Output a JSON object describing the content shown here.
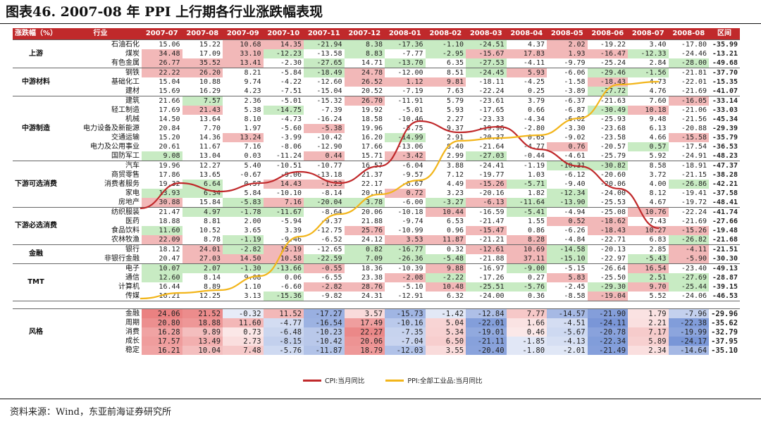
{
  "title": "图表46. 2007-08 年 PPI 上行期各行业涨跌幅表现",
  "source": "资料来源：Wind，东亚前海证券研究所",
  "headers": [
    "涨跌幅（%）",
    "行业",
    "2007-07",
    "2007-08",
    "2007-09",
    "2007-10",
    "2007-11",
    "2007-12",
    "2008-01",
    "2008-02",
    "2008-03",
    "2008-04",
    "2008-05",
    "2008-06",
    "2008-07",
    "2008-08",
    "区间"
  ],
  "groups": [
    {
      "name": "上游",
      "rows": [
        {
          "ind": "石油石化",
          "v": [
            "15.06",
            "15.22",
            "10.68",
            "14.35",
            "-21.94",
            "8.38",
            "-17.36",
            "-1.10",
            "-24.51",
            "4.37",
            "2.02",
            "-19.22",
            "3.40",
            "-17.80",
            "-35.99"
          ]
        },
        {
          "ind": "煤炭",
          "v": [
            "34.48",
            "17.09",
            "33.10",
            "-12.23",
            "-13.58",
            "8.83",
            "-7.77",
            "-2.95",
            "-15.67",
            "17.83",
            "1.93",
            "-16.47",
            "-12.33",
            "-24.46",
            "-13.21"
          ]
        },
        {
          "ind": "有色金属",
          "v": [
            "26.77",
            "35.52",
            "13.41",
            "-2.30",
            "-27.65",
            "14.71",
            "-13.70",
            "6.35",
            "-27.53",
            "-4.11",
            "-9.79",
            "-25.24",
            "2.84",
            "-28.00",
            "-49.68"
          ]
        }
      ]
    },
    {
      "name": "中游材料",
      "rows": [
        {
          "ind": "钢铁",
          "v": [
            "22.22",
            "26.20",
            "8.21",
            "-5.84",
            "-18.49",
            "24.78",
            "-12.00",
            "8.51",
            "-24.45",
            "5.93",
            "-6.06",
            "-29.46",
            "-1.56",
            "-21.81",
            "-37.70"
          ]
        },
        {
          "ind": "基础化工",
          "v": [
            "15.04",
            "10.88",
            "9.74",
            "-4.22",
            "-12.60",
            "26.52",
            "1.12",
            "9.81",
            "-18.11",
            "-4.25",
            "-1.58",
            "-18.43",
            "4.73",
            "-22.01",
            "-15.35"
          ]
        },
        {
          "ind": "建材",
          "v": [
            "15.69",
            "16.29",
            "4.23",
            "-7.51",
            "-15.04",
            "20.52",
            "-7.19",
            "7.63",
            "-22.24",
            "0.25",
            "-3.89",
            "-27.72",
            "4.76",
            "-21.69",
            "-41.07"
          ]
        }
      ]
    },
    {
      "name": "中游制造",
      "rows": [
        {
          "ind": "建筑",
          "v": [
            "21.66",
            "7.57",
            "2.36",
            "-5.01",
            "-15.32",
            "26.70",
            "-11.91",
            "5.79",
            "-23.61",
            "3.79",
            "-6.37",
            "-21.63",
            "7.60",
            "-16.05",
            "-33.14"
          ]
        },
        {
          "ind": "轻工制造",
          "v": [
            "17.69",
            "21.43",
            "5.38",
            "-14.75",
            "-7.39",
            "19.92",
            "-5.01",
            "5.93",
            "-17.65",
            "0.66",
            "-6.87",
            "-30.49",
            "10.18",
            "-21.06",
            "-33.03"
          ]
        },
        {
          "ind": "机械",
          "v": [
            "14.50",
            "13.64",
            "8.10",
            "-4.73",
            "-16.24",
            "18.58",
            "-10.46",
            "2.27",
            "-23.33",
            "-4.34",
            "-6.02",
            "-25.93",
            "9.48",
            "-21.56",
            "-45.34"
          ]
        },
        {
          "ind": "电力设备及新能源",
          "v": [
            "20.84",
            "7.70",
            "1.97",
            "-5.60",
            "-5.38",
            "19.96",
            "-5.75",
            "9.37",
            "-19.96",
            "-2.80",
            "-3.30",
            "-23.68",
            "6.13",
            "-20.88",
            "-29.39"
          ]
        },
        {
          "ind": "交通运输",
          "v": [
            "15.20",
            "14.36",
            "13.24",
            "-3.99",
            "-10.42",
            "16.20",
            "-14.99",
            "2.91",
            "-20.37",
            "0.65",
            "-9.02",
            "-23.58",
            "4.66",
            "-15.58",
            "-35.79"
          ]
        },
        {
          "ind": "电力及公用事业",
          "v": [
            "20.61",
            "11.67",
            "7.16",
            "-8.06",
            "-12.90",
            "17.66",
            "-13.06",
            "8.40",
            "-21.64",
            "-4.77",
            "0.76",
            "-20.57",
            "0.57",
            "-17.54",
            "-36.53"
          ]
        },
        {
          "ind": "国防军工",
          "v": [
            "9.08",
            "13.04",
            "0.03",
            "-11.24",
            "0.44",
            "15.71",
            "-3.42",
            "2.99",
            "-27.03",
            "-0.44",
            "-4.61",
            "-25.79",
            "5.92",
            "-24.91",
            "-48.23"
          ]
        }
      ]
    },
    {
      "name": "下游可选消费",
      "rows": [
        {
          "ind": "汽车",
          "v": [
            "19.96",
            "12.27",
            "5.40",
            "-10.51",
            "-10.77",
            "16.57",
            "-6.04",
            "3.88",
            "-24.41",
            "-1.19",
            "-10.31",
            "-30.82",
            "8.58",
            "-18.91",
            "-47.37"
          ]
        },
        {
          "ind": "商贸零售",
          "v": [
            "17.86",
            "13.65",
            "-0.67",
            "-9.06",
            "-13.18",
            "21.37",
            "-9.57",
            "7.12",
            "-19.77",
            "1.03",
            "-6.12",
            "-20.60",
            "3.72",
            "-21.15",
            "-38.28"
          ]
        },
        {
          "ind": "消费者服务",
          "v": [
            "19.32",
            "6.64",
            "0.57",
            "14.43",
            "-1.23",
            "22.17",
            "-6.67",
            "4.49",
            "-15.26",
            "-5.71",
            "-9.40",
            "-20.06",
            "4.00",
            "-26.86",
            "-42.21"
          ]
        },
        {
          "ind": "家电",
          "v": [
            "13.93",
            "6.34",
            "5.84",
            "-10.10",
            "-8.14",
            "20.16",
            "0.72",
            "3.23",
            "-20.16",
            "1.82",
            "-12.34",
            "-24.00",
            "8.12",
            "-19.41",
            "-37.58"
          ]
        },
        {
          "ind": "房地产",
          "v": [
            "30.88",
            "15.84",
            "-5.83",
            "7.16",
            "-20.04",
            "3.78",
            "-6.00",
            "-3.27",
            "-6.13",
            "-11.64",
            "-13.90",
            "-25.53",
            "4.67",
            "-19.72",
            "-48.41"
          ]
        }
      ]
    },
    {
      "name": "下游必选消费",
      "rows": [
        {
          "ind": "纺织服装",
          "v": [
            "21.47",
            "4.97",
            "-1.78",
            "-11.67",
            "-8.64",
            "20.06",
            "-10.18",
            "10.44",
            "-16.59",
            "-5.41",
            "-4.94",
            "-25.08",
            "10.76",
            "-22.24",
            "-41.74"
          ]
        },
        {
          "ind": "医药",
          "v": [
            "18.88",
            "8.81",
            "2.00",
            "-5.94",
            "-9.37",
            "21.88",
            "-9.74",
            "6.53",
            "-21.47",
            "1.55",
            "0.52",
            "-18.62",
            "7.43",
            "-21.69",
            "-27.66"
          ]
        },
        {
          "ind": "食品饮料",
          "v": [
            "11.60",
            "10.52",
            "3.65",
            "3.39",
            "-12.75",
            "25.76",
            "-10.99",
            "0.96",
            "-15.47",
            "0.86",
            "-6.26",
            "-18.43",
            "10.27",
            "-15.26",
            "-19.48"
          ]
        },
        {
          "ind": "农林牧渔",
          "v": [
            "22.09",
            "8.78",
            "-1.19",
            "-9.46",
            "-6.52",
            "24.12",
            "3.53",
            "11.87",
            "-21.21",
            "8.28",
            "-4.84",
            "-22.71",
            "6.83",
            "-26.82",
            "-21.68"
          ]
        }
      ]
    },
    {
      "name": "金融",
      "rows": [
        {
          "ind": "银行",
          "v": [
            "18.12",
            "24.01",
            "-2.82",
            "15.19",
            "-12.65",
            "0.82",
            "-16.77",
            "0.32",
            "-12.61",
            "10.69",
            "-14.58",
            "-20.13",
            "2.85",
            "-4.11",
            "-21.51"
          ]
        },
        {
          "ind": "非银行金融",
          "v": [
            "20.47",
            "27.03",
            "14.50",
            "10.58",
            "-22.59",
            "7.09",
            "-26.36",
            "-5.48",
            "-21.88",
            "37.11",
            "-15.10",
            "-22.97",
            "-5.43",
            "-5.90",
            "-30.30"
          ]
        }
      ]
    },
    {
      "name": "TMT",
      "rows": [
        {
          "ind": "电子",
          "v": [
            "10.07",
            "2.07",
            "-1.30",
            "-13.66",
            "-0.55",
            "18.36",
            "-10.39",
            "9.88",
            "-16.97",
            "-9.00",
            "-5.15",
            "-26.64",
            "16.54",
            "-23.40",
            "-49.13"
          ]
        },
        {
          "ind": "通信",
          "v": [
            "12.60",
            "8.14",
            "9.08",
            "0.06",
            "-6.55",
            "23.38",
            "-2.08",
            "-2.22",
            "-17.26",
            "0.27",
            "5.83",
            "-25.50",
            "2.51",
            "-27.69",
            "-28.87"
          ]
        },
        {
          "ind": "计算机",
          "v": [
            "16.44",
            "8.89",
            "1.10",
            "-6.60",
            "-2.82",
            "28.76",
            "-5.10",
            "10.48",
            "-25.51",
            "-5.76",
            "-2.45",
            "-29.30",
            "9.70",
            "-25.44",
            "-39.15"
          ]
        },
        {
          "ind": "传媒",
          "v": [
            "16.21",
            "12.25",
            "3.13",
            "-15.36",
            "-9.82",
            "24.31",
            "-12.91",
            "6.32",
            "-24.00",
            "0.36",
            "-8.58",
            "-19.04",
            "5.52",
            "-24.06",
            "-46.53"
          ]
        }
      ]
    }
  ],
  "style_group": {
    "name": "风格",
    "rows": [
      {
        "ind": "金融",
        "v": [
          "24.06",
          "21.52",
          "-0.32",
          "11.52",
          "-17.27",
          "3.57",
          "-15.73",
          "-1.42",
          "-12.84",
          "7.77",
          "-14.57",
          "-21.90",
          "1.79",
          "-7.96",
          "-29.96"
        ]
      },
      {
        "ind": "周期",
        "v": [
          "20.80",
          "18.88",
          "11.60",
          "-4.77",
          "-16.54",
          "17.49",
          "-10.16",
          "5.04",
          "-22.01",
          "1.66",
          "-4.51",
          "-24.11",
          "2.21",
          "-22.38",
          "-35.62"
        ]
      },
      {
        "ind": "消费",
        "v": [
          "16.28",
          "9.89",
          "0.73",
          "-6.48",
          "-10.23",
          "22.27",
          "-7.35",
          "5.34",
          "-19.01",
          "0.46",
          "-5.67",
          "-20.78",
          "7.17",
          "-19.99",
          "-32.79"
        ]
      },
      {
        "ind": "成长",
        "v": [
          "17.57",
          "13.49",
          "2.73",
          "-8.15",
          "-10.42",
          "20.06",
          "-7.04",
          "6.50",
          "-21.11",
          "-1.85",
          "-4.13",
          "-22.34",
          "5.89",
          "-24.17",
          "-37.95"
        ]
      },
      {
        "ind": "稳定",
        "v": [
          "16.21",
          "10.04",
          "7.48",
          "-5.76",
          "-11.87",
          "18.79",
          "-12.03",
          "3.55",
          "-20.40",
          "-1.80",
          "-2.01",
          "-21.49",
          "2.34",
          "-14.64",
          "-35.10"
        ]
      }
    ]
  },
  "chart_data": {
    "type": "line",
    "x": [
      "2007-07",
      "2007-08",
      "2007-09",
      "2007-10",
      "2007-11",
      "2007-12",
      "2008-01",
      "2008-02",
      "2008-03",
      "2008-04",
      "2008-05",
      "2008-06",
      "2008-07",
      "2008-08"
    ],
    "series": [
      {
        "name": "CPI:当月同比",
        "color": "#c0292b",
        "values": [
          5.6,
          6.5,
          6.2,
          6.5,
          6.9,
          6.5,
          7.1,
          8.7,
          8.3,
          8.5,
          7.7,
          7.1,
          6.3,
          4.9
        ]
      },
      {
        "name": "PPI:全部工业品:当月同比",
        "color": "#f2b51a",
        "values": [
          2.4,
          2.6,
          2.7,
          3.2,
          4.6,
          5.4,
          6.1,
          6.6,
          8.0,
          8.1,
          8.2,
          8.8,
          10.0,
          10.1
        ]
      }
    ],
    "ylim": [
      2,
      10.5
    ]
  },
  "colors": {
    "header": "#c0292b",
    "pos": "#f2b8b8",
    "neg": "#c8ebc3"
  }
}
